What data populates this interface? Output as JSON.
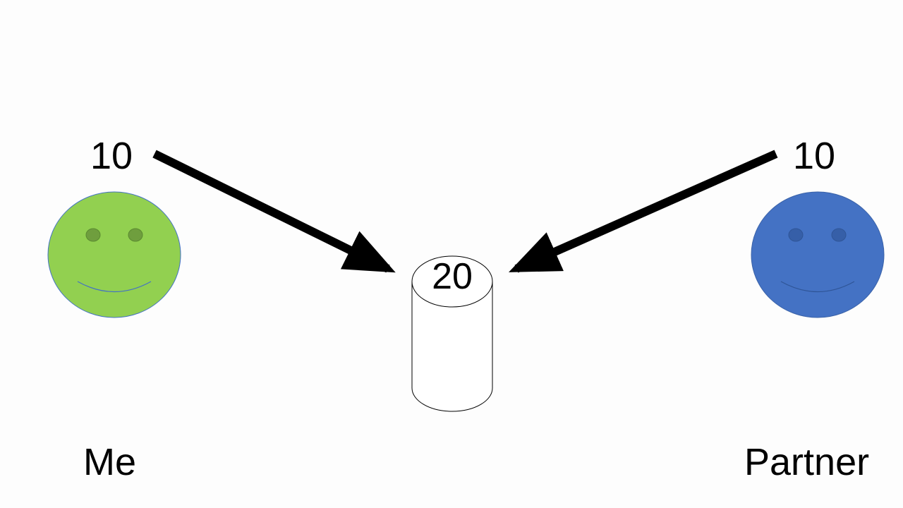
{
  "me": {
    "contribution": "10",
    "name": "Me",
    "color": "#92d050",
    "eye_color": "#6f9e3e",
    "icon": "smiley-face-icon"
  },
  "partner": {
    "contribution": "10",
    "name": "Partner",
    "color": "#4472c4",
    "eye_color": "#365fa8",
    "icon": "smiley-face-icon"
  },
  "pot": {
    "total": "20",
    "icon": "cylinder-icon"
  },
  "arrows": {
    "color": "#000000",
    "icon": "arrow-icon"
  }
}
